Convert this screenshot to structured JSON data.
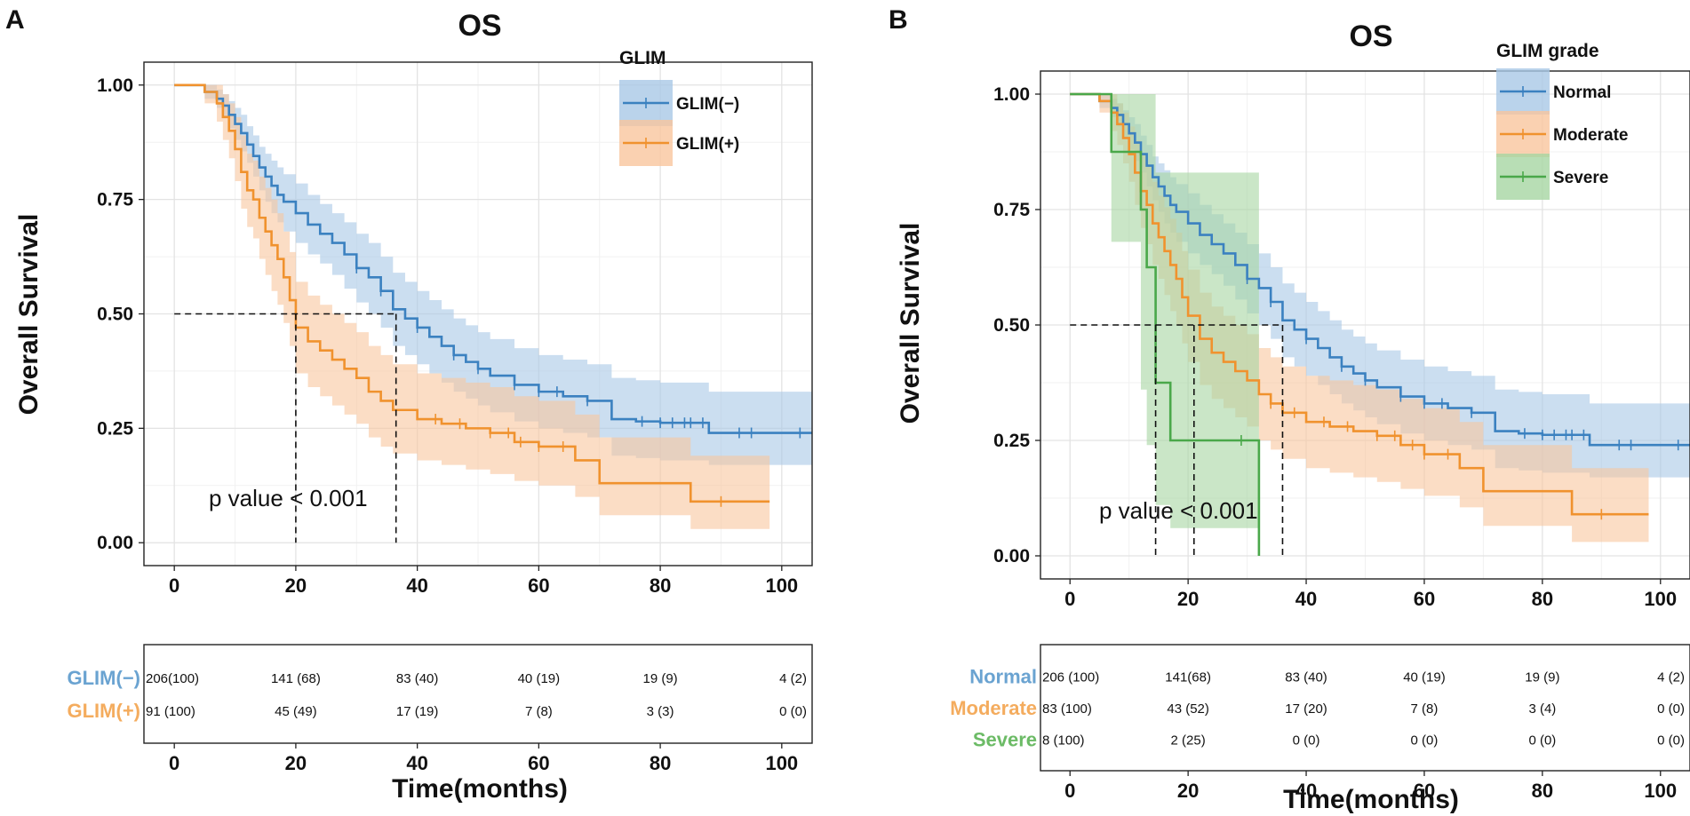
{
  "chart_data": [
    {
      "type": "line",
      "subtype": "kaplan-meier",
      "panel_label": "A",
      "title": "OS",
      "ylabel": "Overall Survival",
      "xlabel": "Time(months)",
      "xlim": [
        -5,
        105
      ],
      "ylim": [
        -0.05,
        1.05
      ],
      "xticks": [
        0,
        20,
        40,
        60,
        80,
        100
      ],
      "yticks": [
        0.0,
        0.25,
        0.5,
        0.75,
        1.0
      ],
      "ytick_labels": [
        "0.00",
        "0.25",
        "0.50",
        "0.75",
        "1.00"
      ],
      "legend_title": "GLIM",
      "legend_position": "top-right",
      "p_value_text": "p value < 0.001",
      "median_lines": [
        {
          "y": 0.5,
          "x": 20
        },
        {
          "y": 0.5,
          "x": 36.5
        }
      ],
      "series": [
        {
          "name": "GLIM(−)",
          "color": "#3b81c0",
          "band_color": "#a9c8e6",
          "x": [
            0,
            5,
            7,
            8,
            9,
            10,
            11,
            12,
            13,
            14,
            15,
            16,
            17,
            18,
            20,
            22,
            24,
            26,
            28,
            30,
            32,
            34,
            36,
            38,
            40,
            42,
            44,
            46,
            48,
            50,
            52,
            56,
            60,
            64,
            68,
            72,
            76,
            80,
            88,
            92,
            96,
            105
          ],
          "y": [
            1,
            0.985,
            0.97,
            0.955,
            0.935,
            0.915,
            0.895,
            0.87,
            0.845,
            0.82,
            0.8,
            0.78,
            0.76,
            0.745,
            0.72,
            0.695,
            0.675,
            0.655,
            0.63,
            0.6,
            0.58,
            0.55,
            0.51,
            0.49,
            0.47,
            0.45,
            0.43,
            0.41,
            0.395,
            0.38,
            0.365,
            0.345,
            0.33,
            0.32,
            0.31,
            0.27,
            0.265,
            0.262,
            0.24,
            0.24,
            0.24,
            0.24
          ],
          "ci_low": [
            1,
            0.97,
            0.95,
            0.93,
            0.905,
            0.88,
            0.855,
            0.83,
            0.8,
            0.77,
            0.745,
            0.72,
            0.7,
            0.68,
            0.655,
            0.63,
            0.61,
            0.585,
            0.555,
            0.525,
            0.5,
            0.47,
            0.43,
            0.41,
            0.39,
            0.37,
            0.35,
            0.33,
            0.315,
            0.3,
            0.285,
            0.265,
            0.25,
            0.24,
            0.23,
            0.19,
            0.185,
            0.18,
            0.17,
            0.17,
            0.17,
            0.17
          ],
          "ci_high": [
            1,
            1,
            0.99,
            0.98,
            0.965,
            0.95,
            0.935,
            0.91,
            0.89,
            0.865,
            0.85,
            0.835,
            0.82,
            0.805,
            0.785,
            0.76,
            0.74,
            0.72,
            0.7,
            0.675,
            0.655,
            0.625,
            0.59,
            0.57,
            0.55,
            0.53,
            0.51,
            0.49,
            0.475,
            0.46,
            0.445,
            0.425,
            0.41,
            0.4,
            0.39,
            0.36,
            0.355,
            0.35,
            0.33,
            0.33,
            0.33,
            0.33
          ],
          "censor_x": [
            30,
            34,
            40,
            46,
            50,
            56,
            60,
            63,
            68,
            77,
            80,
            82,
            84,
            85,
            87,
            93,
            95,
            103
          ]
        },
        {
          "name": "GLIM(+)",
          "color": "#f0922e",
          "band_color": "#f9c69e",
          "x": [
            0,
            5,
            7,
            8,
            9,
            10,
            11,
            12,
            13,
            14,
            15,
            16,
            17,
            18,
            19,
            20,
            22,
            24,
            26,
            28,
            30,
            32,
            34,
            36,
            40,
            44,
            48,
            52,
            56,
            60,
            64,
            66,
            70,
            85,
            98
          ],
          "y": [
            1,
            0.985,
            0.96,
            0.93,
            0.9,
            0.86,
            0.81,
            0.77,
            0.75,
            0.71,
            0.68,
            0.65,
            0.62,
            0.58,
            0.53,
            0.47,
            0.44,
            0.42,
            0.4,
            0.38,
            0.36,
            0.33,
            0.31,
            0.29,
            0.27,
            0.26,
            0.25,
            0.24,
            0.22,
            0.21,
            0.21,
            0.18,
            0.13,
            0.09,
            0.09
          ],
          "ci_low": [
            1,
            0.96,
            0.92,
            0.88,
            0.84,
            0.79,
            0.73,
            0.69,
            0.665,
            0.62,
            0.585,
            0.55,
            0.52,
            0.48,
            0.43,
            0.37,
            0.34,
            0.32,
            0.3,
            0.28,
            0.26,
            0.23,
            0.21,
            0.195,
            0.18,
            0.17,
            0.16,
            0.15,
            0.135,
            0.125,
            0.125,
            0.1,
            0.06,
            0.03,
            0.03
          ],
          "ci_high": [
            1,
            1,
            1,
            0.98,
            0.96,
            0.93,
            0.89,
            0.85,
            0.835,
            0.8,
            0.775,
            0.75,
            0.72,
            0.68,
            0.635,
            0.57,
            0.54,
            0.52,
            0.5,
            0.48,
            0.46,
            0.43,
            0.41,
            0.39,
            0.37,
            0.36,
            0.35,
            0.34,
            0.32,
            0.31,
            0.31,
            0.28,
            0.23,
            0.19,
            0.19
          ],
          "censor_x": [
            43,
            47,
            52,
            55,
            57,
            60,
            64,
            90
          ]
        }
      ],
      "risk_table": {
        "times": [
          0,
          20,
          40,
          60,
          80,
          100
        ],
        "rows": [
          {
            "label": "GLIM(−)",
            "color": "#6aa3d1",
            "values": [
              "206(100)",
              "141 (68)",
              "83 (40)",
              "40 (19)",
              "19 (9)",
              "4 (2)"
            ]
          },
          {
            "label": "GLIM(+)",
            "color": "#f4ac5e",
            "values": [
              "91 (100)",
              "45 (49)",
              "17 (19)",
              "7 (8)",
              "3 (3)",
              "0 (0)"
            ]
          }
        ]
      }
    },
    {
      "type": "line",
      "subtype": "kaplan-meier",
      "panel_label": "B",
      "title": "OS",
      "ylabel": "Overall Survival",
      "xlabel": "Time(months)",
      "xlim": [
        -5,
        105
      ],
      "ylim": [
        -0.05,
        1.05
      ],
      "xticks": [
        0,
        20,
        40,
        60,
        80,
        100
      ],
      "yticks": [
        0.0,
        0.25,
        0.5,
        0.75,
        1.0
      ],
      "ytick_labels": [
        "0.00",
        "0.25",
        "0.50",
        "0.75",
        "1.00"
      ],
      "legend_title": "GLIM grade",
      "legend_position": "top-right",
      "p_value_text": "p value < 0.001",
      "median_lines": [
        {
          "y": 0.5,
          "x": 14.5
        },
        {
          "y": 0.5,
          "x": 21
        },
        {
          "y": 0.5,
          "x": 36
        }
      ],
      "series": [
        {
          "name": "Normal",
          "color": "#3b81c0",
          "band_color": "#a9c8e6",
          "x": [
            0,
            5,
            7,
            8,
            9,
            10,
            11,
            12,
            13,
            14,
            15,
            16,
            17,
            18,
            20,
            22,
            24,
            26,
            28,
            30,
            32,
            34,
            36,
            38,
            40,
            42,
            44,
            46,
            48,
            50,
            52,
            56,
            60,
            64,
            68,
            72,
            76,
            80,
            88,
            92,
            96,
            105
          ],
          "y": [
            1,
            0.985,
            0.97,
            0.955,
            0.935,
            0.915,
            0.895,
            0.87,
            0.845,
            0.82,
            0.8,
            0.78,
            0.76,
            0.745,
            0.72,
            0.695,
            0.675,
            0.655,
            0.63,
            0.6,
            0.58,
            0.55,
            0.51,
            0.49,
            0.47,
            0.45,
            0.43,
            0.41,
            0.395,
            0.38,
            0.365,
            0.345,
            0.33,
            0.32,
            0.31,
            0.27,
            0.265,
            0.262,
            0.24,
            0.24,
            0.24,
            0.24
          ],
          "ci_low": [
            1,
            0.97,
            0.95,
            0.93,
            0.905,
            0.88,
            0.855,
            0.83,
            0.8,
            0.77,
            0.745,
            0.72,
            0.7,
            0.68,
            0.655,
            0.63,
            0.61,
            0.585,
            0.555,
            0.525,
            0.5,
            0.47,
            0.43,
            0.41,
            0.39,
            0.37,
            0.35,
            0.33,
            0.315,
            0.3,
            0.285,
            0.265,
            0.25,
            0.24,
            0.23,
            0.19,
            0.185,
            0.18,
            0.17,
            0.17,
            0.17,
            0.17
          ],
          "ci_high": [
            1,
            1,
            0.99,
            0.98,
            0.965,
            0.95,
            0.935,
            0.91,
            0.89,
            0.865,
            0.85,
            0.835,
            0.82,
            0.805,
            0.785,
            0.76,
            0.74,
            0.72,
            0.7,
            0.675,
            0.655,
            0.625,
            0.59,
            0.57,
            0.55,
            0.53,
            0.51,
            0.49,
            0.475,
            0.46,
            0.445,
            0.425,
            0.41,
            0.4,
            0.39,
            0.36,
            0.355,
            0.35,
            0.33,
            0.33,
            0.33,
            0.33
          ],
          "censor_x": [
            30,
            34,
            40,
            46,
            50,
            56,
            60,
            63,
            68,
            77,
            80,
            82,
            84,
            85,
            87,
            93,
            95,
            103
          ]
        },
        {
          "name": "Moderate",
          "color": "#f0922e",
          "band_color": "#f9c69e",
          "x": [
            0,
            5,
            7,
            8,
            9,
            10,
            11,
            12,
            13,
            14,
            15,
            16,
            17,
            18,
            19,
            20,
            22,
            24,
            26,
            28,
            30,
            32,
            34,
            36,
            40,
            44,
            48,
            52,
            56,
            60,
            64,
            66,
            70,
            85,
            98
          ],
          "y": [
            1,
            0.985,
            0.96,
            0.935,
            0.905,
            0.87,
            0.83,
            0.79,
            0.76,
            0.72,
            0.69,
            0.66,
            0.63,
            0.6,
            0.56,
            0.52,
            0.47,
            0.44,
            0.42,
            0.4,
            0.38,
            0.35,
            0.33,
            0.31,
            0.29,
            0.28,
            0.27,
            0.26,
            0.24,
            0.22,
            0.22,
            0.19,
            0.14,
            0.09,
            0.09
          ],
          "ci_low": [
            1,
            0.96,
            0.92,
            0.89,
            0.85,
            0.81,
            0.76,
            0.71,
            0.675,
            0.63,
            0.6,
            0.565,
            0.53,
            0.5,
            0.46,
            0.42,
            0.37,
            0.34,
            0.32,
            0.3,
            0.28,
            0.25,
            0.23,
            0.21,
            0.19,
            0.18,
            0.17,
            0.16,
            0.145,
            0.13,
            0.13,
            0.105,
            0.065,
            0.03,
            0.03
          ],
          "ci_high": [
            1,
            1,
            1,
            0.98,
            0.96,
            0.93,
            0.9,
            0.87,
            0.845,
            0.81,
            0.78,
            0.755,
            0.73,
            0.7,
            0.66,
            0.62,
            0.57,
            0.54,
            0.52,
            0.5,
            0.48,
            0.45,
            0.43,
            0.41,
            0.39,
            0.38,
            0.37,
            0.36,
            0.34,
            0.32,
            0.32,
            0.29,
            0.24,
            0.19,
            0.19
          ],
          "censor_x": [
            34,
            38,
            43,
            47,
            52,
            55,
            58,
            60,
            64,
            90
          ]
        },
        {
          "name": "Severe",
          "color": "#4aa84a",
          "band_color": "#a6d6a2",
          "x": [
            0,
            7,
            8,
            12,
            13,
            14.5,
            17,
            29,
            32
          ],
          "y": [
            1,
            0.875,
            0.875,
            0.75,
            0.625,
            0.375,
            0.25,
            0.25,
            0
          ],
          "ci_low": [
            1,
            0.68,
            0.68,
            0.36,
            0.24,
            0.11,
            0.06,
            0.06,
            0.06
          ],
          "ci_high": [
            1,
            1,
            1,
            1,
            1,
            0.83,
            0.83,
            0.83,
            0.83
          ],
          "censor_x": [
            29
          ]
        }
      ],
      "risk_table": {
        "times": [
          0,
          20,
          40,
          60,
          80,
          100
        ],
        "rows": [
          {
            "label": "Normal",
            "color": "#6aa3d1",
            "values": [
              "206 (100)",
              "141(68)",
              "83  (40)",
              "40  (19)",
              "19 (9)",
              "4 (2)"
            ]
          },
          {
            "label": "Moderate",
            "color": "#f4ac5e",
            "values": [
              "83 (100)",
              "43 (52)",
              "17 (20)",
              "7 (8)",
              "3 (4)",
              "0 (0)"
            ]
          },
          {
            "label": "Severe",
            "color": "#6cbb66",
            "values": [
              "8 (100)",
              "2 (25)",
              "0 (0)",
              "0 (0)",
              "0 (0)",
              "0 (0)"
            ]
          }
        ]
      }
    }
  ]
}
